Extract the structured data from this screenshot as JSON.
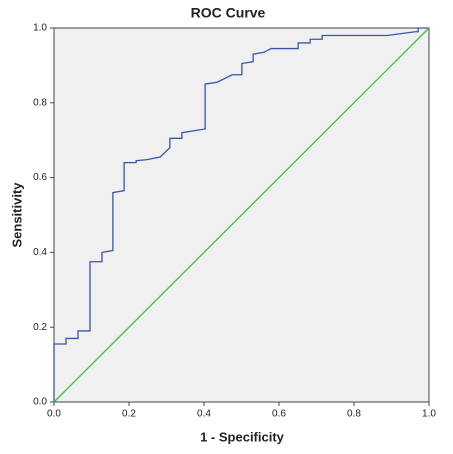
{
  "chart_data": {
    "type": "line",
    "title": "ROC Curve",
    "x_label": "1 - Specificity",
    "y_label": "Sensitivity",
    "xlim": [
      0,
      1
    ],
    "ylim": [
      0,
      1
    ],
    "xticks": [
      {
        "value": 0,
        "label": "0.0"
      },
      0.2,
      0.4,
      0.6,
      0.8,
      {
        "value": 1,
        "label": "1.0"
      }
    ],
    "yticks": [
      {
        "value": 0,
        "label": "0.0"
      },
      0.2,
      0.4,
      0.6,
      0.8,
      {
        "value": 1,
        "label": "1.0"
      }
    ],
    "grid": false,
    "series": [
      {
        "color": "#3a55a8",
        "x": [
          0,
          0,
          0.032,
          0.032,
          0.064,
          0.064,
          0.096,
          0.096,
          0.128,
          0.128,
          0.157,
          0.157,
          0.187,
          0.187,
          0.219,
          0.219,
          0.248,
          0.283,
          0.309,
          0.309,
          0.341,
          0.341,
          0.403,
          0.403,
          0.435,
          0.475,
          0.501,
          0.501,
          0.531,
          0.531,
          0.56,
          0.579,
          0.651,
          0.651,
          0.683,
          0.683,
          0.715,
          0.715,
          0.888,
          0.963,
          0.971,
          0.971,
          1
        ],
        "values": [
          0,
          0.155,
          0.155,
          0.17,
          0.17,
          0.19,
          0.19,
          0.375,
          0.375,
          0.4,
          0.405,
          0.56,
          0.565,
          0.64,
          0.64,
          0.645,
          0.648,
          0.655,
          0.68,
          0.705,
          0.705,
          0.72,
          0.73,
          0.85,
          0.855,
          0.875,
          0.875,
          0.905,
          0.91,
          0.93,
          0.935,
          0.945,
          0.945,
          0.96,
          0.96,
          0.97,
          0.97,
          0.98,
          0.98,
          0.99,
          0.99,
          1,
          1
        ]
      },
      {
        "color": "#3cc13c",
        "x": [
          0,
          1
        ],
        "values": [
          0,
          1
        ]
      }
    ]
  }
}
